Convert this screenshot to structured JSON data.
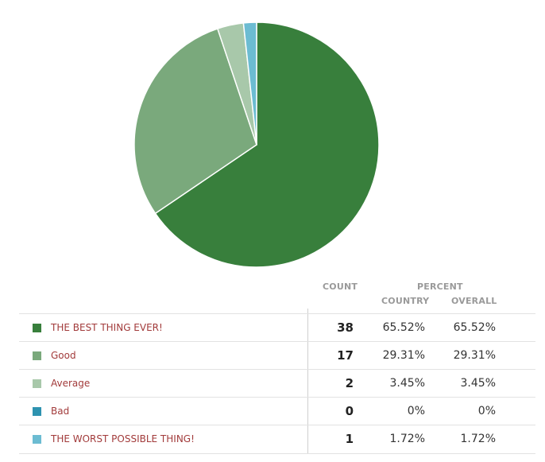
{
  "chart_data": {
    "type": "pie",
    "slices": [
      {
        "label": "THE BEST THING EVER!",
        "count": 38,
        "percent_country": "65.52%",
        "percent_overall": "65.52%",
        "value": 65.52,
        "color": "#387f3c"
      },
      {
        "label": "Good",
        "count": 17,
        "percent_country": "29.31%",
        "percent_overall": "29.31%",
        "value": 29.31,
        "color": "#7aa97c"
      },
      {
        "label": "Average",
        "count": 2,
        "percent_country": "3.45%",
        "percent_overall": "3.45%",
        "value": 3.45,
        "color": "#a8c8aa"
      },
      {
        "label": "Bad",
        "count": 0,
        "percent_country": "0%",
        "percent_overall": "0%",
        "value": 0,
        "color": "#2e93b0"
      },
      {
        "label": "THE WORST POSSIBLE THING!",
        "count": 1,
        "percent_country": "1.72%",
        "percent_overall": "1.72%",
        "value": 1.72,
        "color": "#6cbcd2"
      }
    ]
  },
  "table": {
    "count_header": "COUNT",
    "percent_header": "PERCENT",
    "country_header": "COUNTRY",
    "overall_header": "OVERALL"
  }
}
